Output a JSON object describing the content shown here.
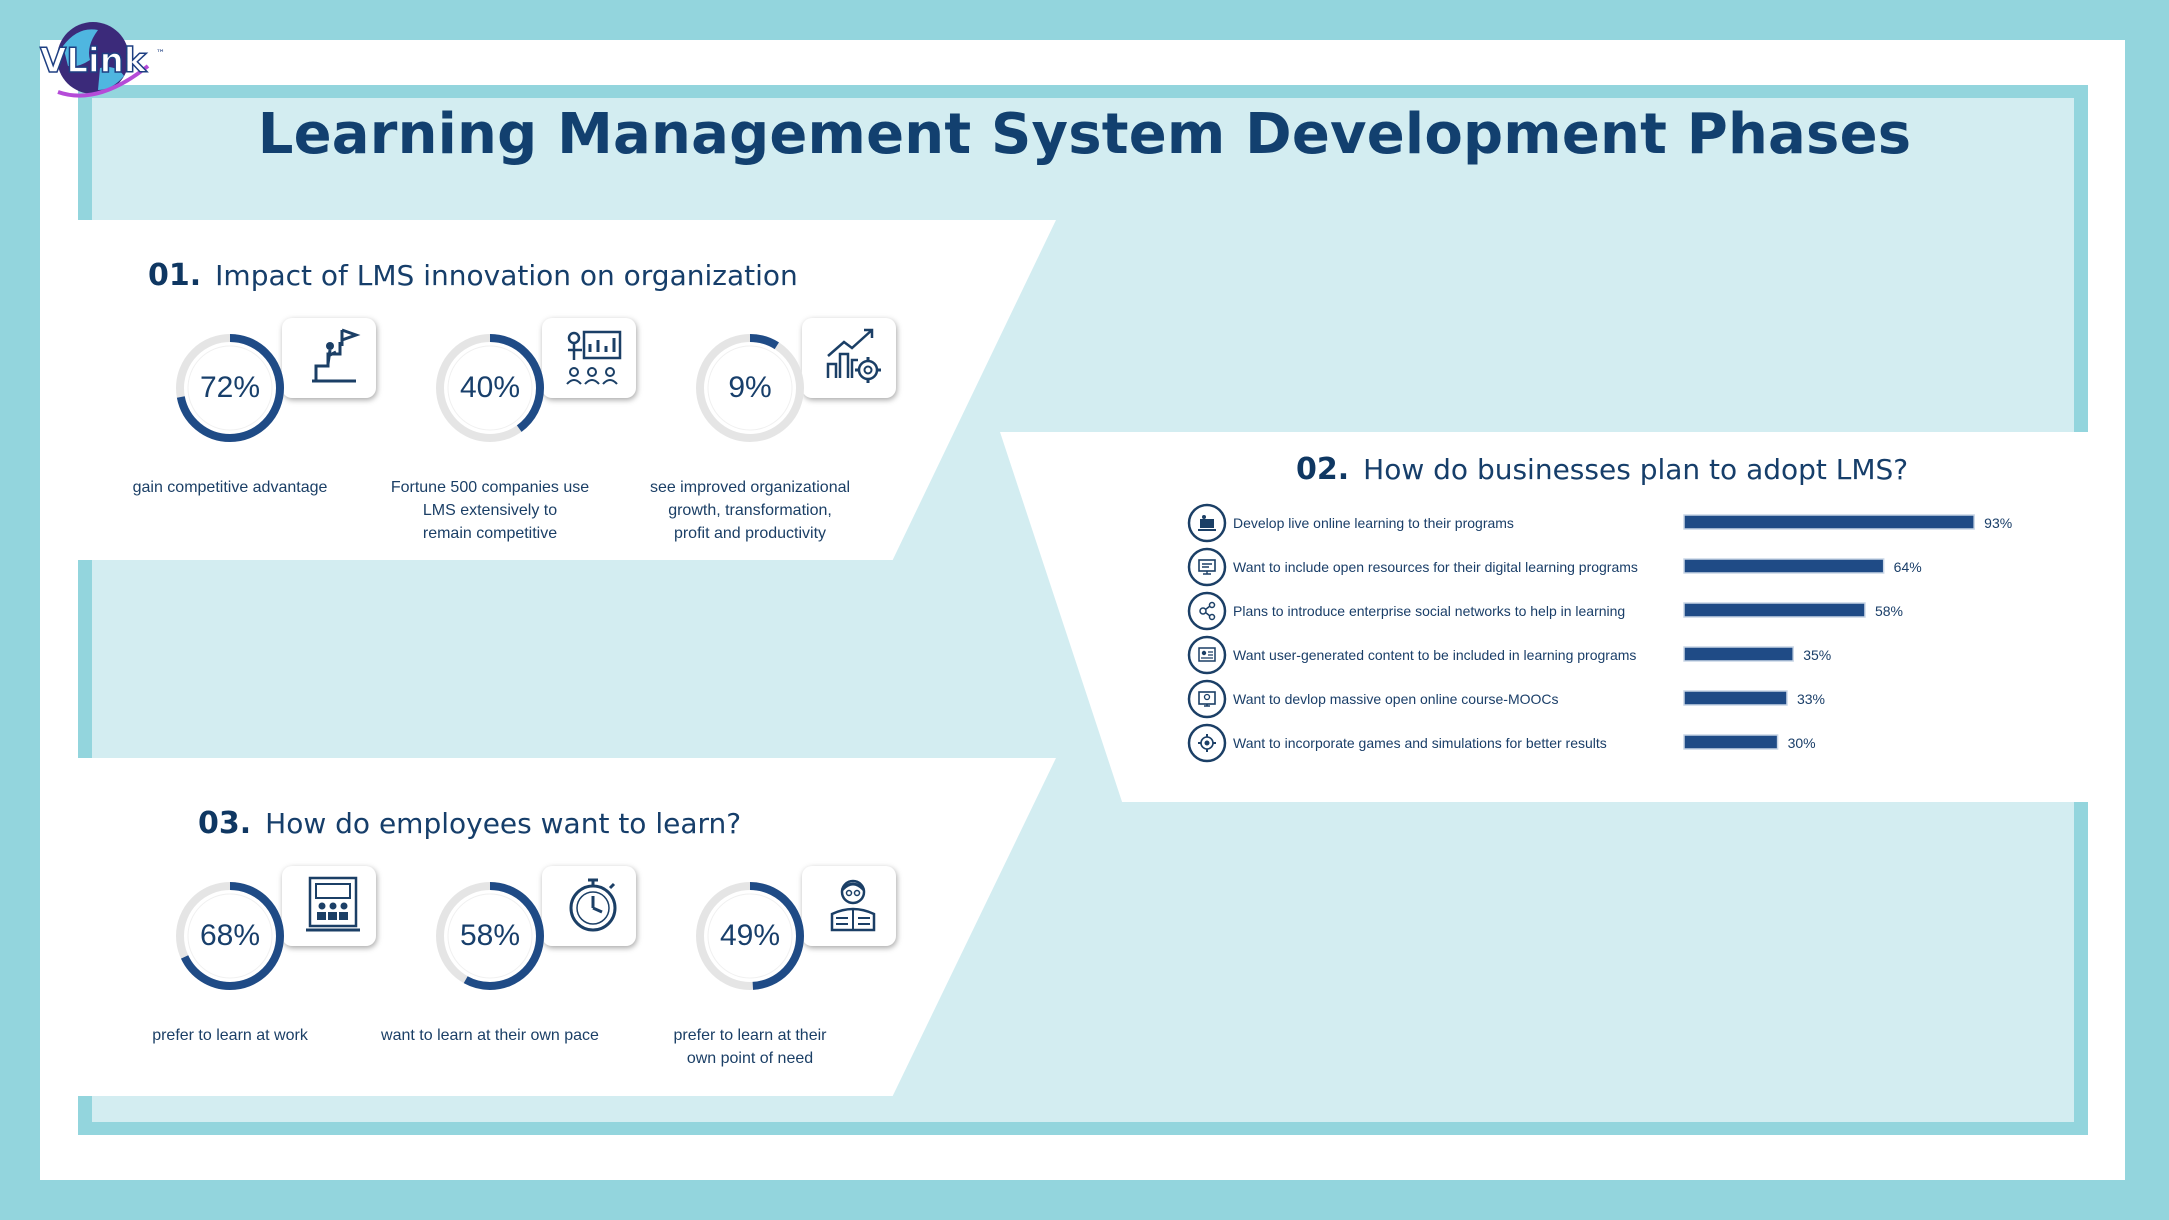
{
  "brand": {
    "logo_text": "VLink",
    "logo_mark": "™"
  },
  "title": "Learning Management System Development Phases",
  "colors": {
    "accent": "#1f4b86",
    "background": "#93d5dd",
    "panel_bg": "#d3edf1",
    "ring_track": "#e5e5e5"
  },
  "section1": {
    "num": "01.",
    "title": "Impact of LMS innovation on organization",
    "stats": [
      {
        "value": "72%",
        "fraction": 0.72,
        "icon": "ladder-flag-icon",
        "desc": [
          "gain competitive advantage"
        ]
      },
      {
        "value": "40%",
        "fraction": 0.4,
        "icon": "presentation-audience-icon",
        "desc": [
          "Fortune 500 companies use",
          "LMS extensively to",
          "remain competitive"
        ]
      },
      {
        "value": "9%",
        "fraction": 0.09,
        "icon": "growth-chart-gear-icon",
        "desc": [
          "see improved organizational",
          "growth, transformation,",
          "profit and productivity"
        ]
      }
    ]
  },
  "section2": {
    "num": "02.",
    "title": "How do businesses plan to adopt LMS?"
  },
  "section3": {
    "num": "03.",
    "title": "How do employees want to learn?",
    "stats": [
      {
        "value": "68%",
        "fraction": 0.68,
        "icon": "classroom-board-icon",
        "desc": [
          "prefer to learn at work"
        ]
      },
      {
        "value": "58%",
        "fraction": 0.58,
        "icon": "stopwatch-icon",
        "desc": [
          "want to learn at their own pace"
        ]
      },
      {
        "value": "49%",
        "fraction": 0.49,
        "icon": "reading-person-icon",
        "desc": [
          "prefer to learn at their",
          "own point of need"
        ]
      }
    ]
  },
  "chart_data": {
    "type": "bar",
    "orientation": "horizontal",
    "title": "How do businesses plan to adopt LMS?",
    "categories": [
      "Develop live online learning to their programs",
      "Want to include open resources for their digital learning programs",
      "Plans to introduce enterprise social networks to help in learning",
      "Want user-generated content to be included in learning programs",
      "Want to devlop massive open online course-MOOCs",
      "Want to incorporate games and simulations for better results"
    ],
    "values": [
      93,
      64,
      58,
      35,
      33,
      30
    ],
    "value_labels": [
      "93%",
      "64%",
      "58%",
      "35%",
      "33%",
      "30%"
    ],
    "icons": [
      "live-video-icon",
      "monitor-resources-icon",
      "network-icon",
      "user-content-icon",
      "mooc-screen-icon",
      "gear-game-icon"
    ],
    "xlim": [
      0,
      100
    ],
    "grid": false
  }
}
